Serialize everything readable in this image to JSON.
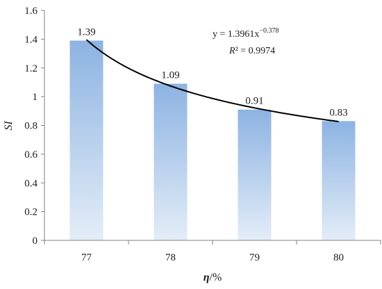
{
  "chart_data": {
    "type": "bar",
    "categories": [
      "77",
      "78",
      "79",
      "80"
    ],
    "values": [
      1.39,
      1.09,
      0.91,
      0.83
    ],
    "data_labels": [
      "1.39",
      "1.09",
      "0.91",
      "0.83"
    ],
    "xlabel_symbol": "η",
    "xlabel_unit": "/%",
    "ylabel": "SI",
    "ylim": [
      0,
      1.6
    ],
    "yticks": [
      0,
      0.2,
      0.4,
      0.6,
      0.8,
      1,
      1.2,
      1.4,
      1.6
    ],
    "ytick_labels": [
      "0",
      "0.2",
      "0.4",
      "0.6",
      "0.8",
      "1",
      "1.2",
      "1.4",
      "1.6"
    ],
    "grid": false,
    "legend": "none",
    "bar_color_top": "#8db3e2",
    "bar_color_bottom": "#e3edf8",
    "trendline": {
      "type": "power",
      "coefficient": 1.3961,
      "exponent": -0.378,
      "equation_prefix": "y = 1.3961x",
      "equation_exponent": "−0.378",
      "r2_symbol": "R",
      "r2_rest": "² = 0.9974",
      "color": "#000000"
    }
  }
}
